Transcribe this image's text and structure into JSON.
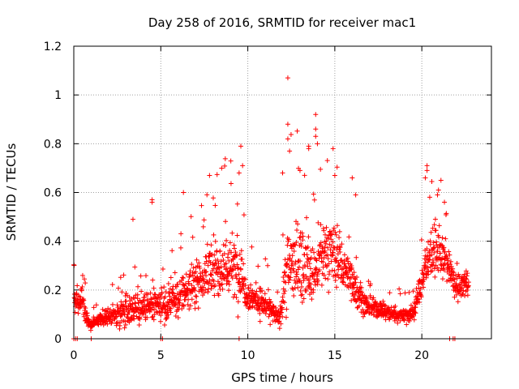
{
  "chart_data": {
    "type": "scatter",
    "title": "Day 258 of 2016, SRMTID for receiver mac1",
    "xlabel": "GPS time / hours",
    "ylabel": "SRMTID / TECUs",
    "xlim": [
      0,
      24
    ],
    "ylim": [
      0,
      1.2
    ],
    "xticks": [
      0,
      5,
      10,
      15,
      20
    ],
    "xtick_labels": [
      "0",
      "5",
      "10",
      "15",
      "20"
    ],
    "yticks": [
      0,
      0.2,
      0.4,
      0.6,
      0.8,
      1.0,
      1.2
    ],
    "ytick_labels": [
      "0",
      "0.2",
      "0.4",
      "0.6",
      "0.8",
      "1",
      "1.2"
    ],
    "grid": true,
    "marker": "+",
    "series": [
      {
        "name": "SRMTID",
        "color": "#ff0000",
        "envelope": {
          "note": "Approximate smoothed level (x hours, y TECU) with spread, estimated from the dense point cloud",
          "x": [
            0.0,
            0.5,
            0.9,
            1.2,
            2.0,
            3.0,
            4.0,
            5.0,
            6.0,
            7.0,
            8.0,
            9.0,
            9.6,
            10.0,
            11.0,
            11.8,
            12.3,
            13.0,
            13.7,
            14.5,
            15.0,
            16.0,
            16.8,
            17.5,
            18.5,
            19.5,
            20.0,
            20.5,
            21.0,
            21.5,
            22.0,
            22.7
          ],
          "center": [
            0.16,
            0.15,
            0.05,
            0.07,
            0.09,
            0.12,
            0.13,
            0.13,
            0.16,
            0.24,
            0.28,
            0.3,
            0.27,
            0.18,
            0.14,
            0.08,
            0.3,
            0.32,
            0.25,
            0.36,
            0.34,
            0.24,
            0.13,
            0.12,
            0.1,
            0.1,
            0.24,
            0.36,
            0.35,
            0.3,
            0.2,
            0.24
          ],
          "spread": [
            0.08,
            0.1,
            0.03,
            0.03,
            0.05,
            0.1,
            0.1,
            0.1,
            0.12,
            0.15,
            0.18,
            0.22,
            0.2,
            0.1,
            0.09,
            0.05,
            0.28,
            0.24,
            0.2,
            0.22,
            0.2,
            0.14,
            0.06,
            0.06,
            0.05,
            0.06,
            0.12,
            0.18,
            0.15,
            0.1,
            0.08,
            0.1
          ]
        },
        "outliers": [
          {
            "x": 4.5,
            "y": 0.57
          },
          {
            "x": 4.5,
            "y": 0.56
          },
          {
            "x": 3.4,
            "y": 0.49
          },
          {
            "x": 6.3,
            "y": 0.6
          },
          {
            "x": 7.8,
            "y": 0.67
          },
          {
            "x": 9.6,
            "y": 0.79
          },
          {
            "x": 9.7,
            "y": 0.71
          },
          {
            "x": 9.5,
            "y": 0.68
          },
          {
            "x": 12.0,
            "y": 0.68
          },
          {
            "x": 12.3,
            "y": 1.07
          },
          {
            "x": 12.3,
            "y": 0.88
          },
          {
            "x": 12.3,
            "y": 0.82
          },
          {
            "x": 12.4,
            "y": 0.77
          },
          {
            "x": 13.0,
            "y": 0.69
          },
          {
            "x": 13.5,
            "y": 0.79
          },
          {
            "x": 13.5,
            "y": 0.78
          },
          {
            "x": 13.9,
            "y": 0.86
          },
          {
            "x": 13.9,
            "y": 0.83
          },
          {
            "x": 13.9,
            "y": 0.92
          },
          {
            "x": 14.0,
            "y": 0.8
          },
          {
            "x": 14.9,
            "y": 0.78
          },
          {
            "x": 15.0,
            "y": 0.67
          },
          {
            "x": 16.0,
            "y": 0.66
          },
          {
            "x": 16.2,
            "y": 0.59
          },
          {
            "x": 20.3,
            "y": 0.71
          },
          {
            "x": 20.3,
            "y": 0.69
          },
          {
            "x": 20.2,
            "y": 0.66
          },
          {
            "x": 21.1,
            "y": 0.65
          },
          {
            "x": 20.9,
            "y": 0.59
          },
          {
            "x": 21.3,
            "y": 0.56
          }
        ],
        "zero_values_x": [
          0.0,
          0.1,
          0.2,
          1.0,
          5.0,
          5.1,
          9.5,
          21.6,
          21.8,
          21.9
        ]
      }
    ]
  }
}
